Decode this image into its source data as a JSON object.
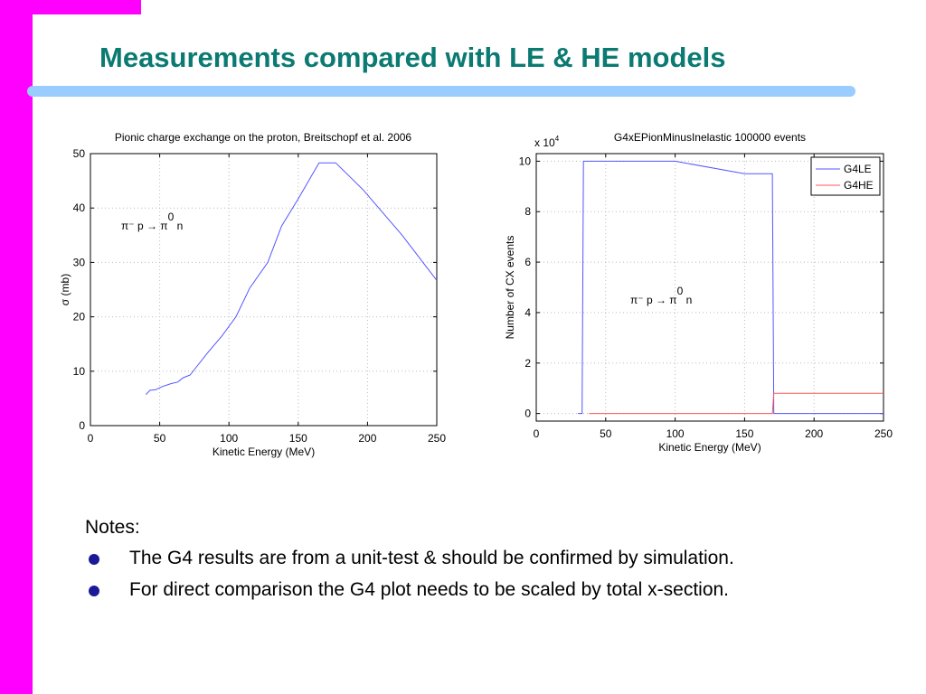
{
  "slide": {
    "title": "Measurements compared with LE & HE models",
    "notes_heading": "Notes:",
    "notes": [
      "The G4 results are from a unit-test & should be confirmed by simulation.",
      "For direct comparison the G4 plot needs to be scaled by total x-section."
    ]
  },
  "colors": {
    "accent_bar": "#ff00ff",
    "title": "#0b7a72",
    "rule": "#99ccff",
    "series_le": "#5555ff",
    "series_he": "#ff5555"
  },
  "chart_data": [
    {
      "type": "line",
      "title": "Pionic charge exchange on the proton, Breitschopf et al. 2006",
      "xlabel": "Kinetic Energy (MeV)",
      "ylabel": "σ (mb)",
      "xlim": [
        0,
        250
      ],
      "ylim": [
        0,
        50
      ],
      "xticks": [
        0,
        50,
        100,
        150,
        200,
        250
      ],
      "yticks": [
        0,
        10,
        20,
        30,
        40,
        50
      ],
      "grid": true,
      "annotation": {
        "base": "π⁻ p → π",
        "sup": "0",
        "tail": " n"
      },
      "series": [
        {
          "x": [
            40,
            43,
            47,
            52,
            58,
            63,
            67,
            72,
            75,
            85,
            95,
            105,
            115,
            128,
            138,
            150,
            165,
            177,
            197,
            225,
            250
          ],
          "y": [
            5.7,
            6.5,
            6.6,
            7.2,
            7.7,
            8.0,
            8.8,
            9.3,
            10.3,
            13.5,
            16.5,
            20.0,
            25.3,
            30.0,
            36.7,
            41.7,
            48.3,
            48.3,
            43.3,
            35.0,
            26.7
          ]
        }
      ]
    },
    {
      "type": "line",
      "title": "G4xEPionMinusInelastic    100000 events",
      "xlabel": "Kinetic Energy (MeV)",
      "ylabel": "Number of CX events",
      "scale_label": {
        "base": "x 10",
        "exp": "4"
      },
      "xlim": [
        0,
        250
      ],
      "ylim": [
        -0.3,
        10.3
      ],
      "xticks": [
        0,
        50,
        100,
        150,
        200,
        250
      ],
      "yticks": [
        0,
        2,
        4,
        6,
        8,
        10
      ],
      "grid": true,
      "legend": "top-right",
      "annotation": {
        "base": "π⁻ p → π",
        "sup": "0",
        "tail": " n"
      },
      "series": [
        {
          "name": "G4LE",
          "x": [
            30,
            33,
            34,
            100,
            150,
            170,
            171,
            250
          ],
          "y": [
            0,
            0,
            10.0,
            10.0,
            9.5,
            9.5,
            0,
            0
          ]
        },
        {
          "name": "G4HE",
          "x": [
            38,
            170,
            171,
            250
          ],
          "y": [
            0,
            0,
            0.8,
            0.8
          ]
        }
      ]
    }
  ]
}
